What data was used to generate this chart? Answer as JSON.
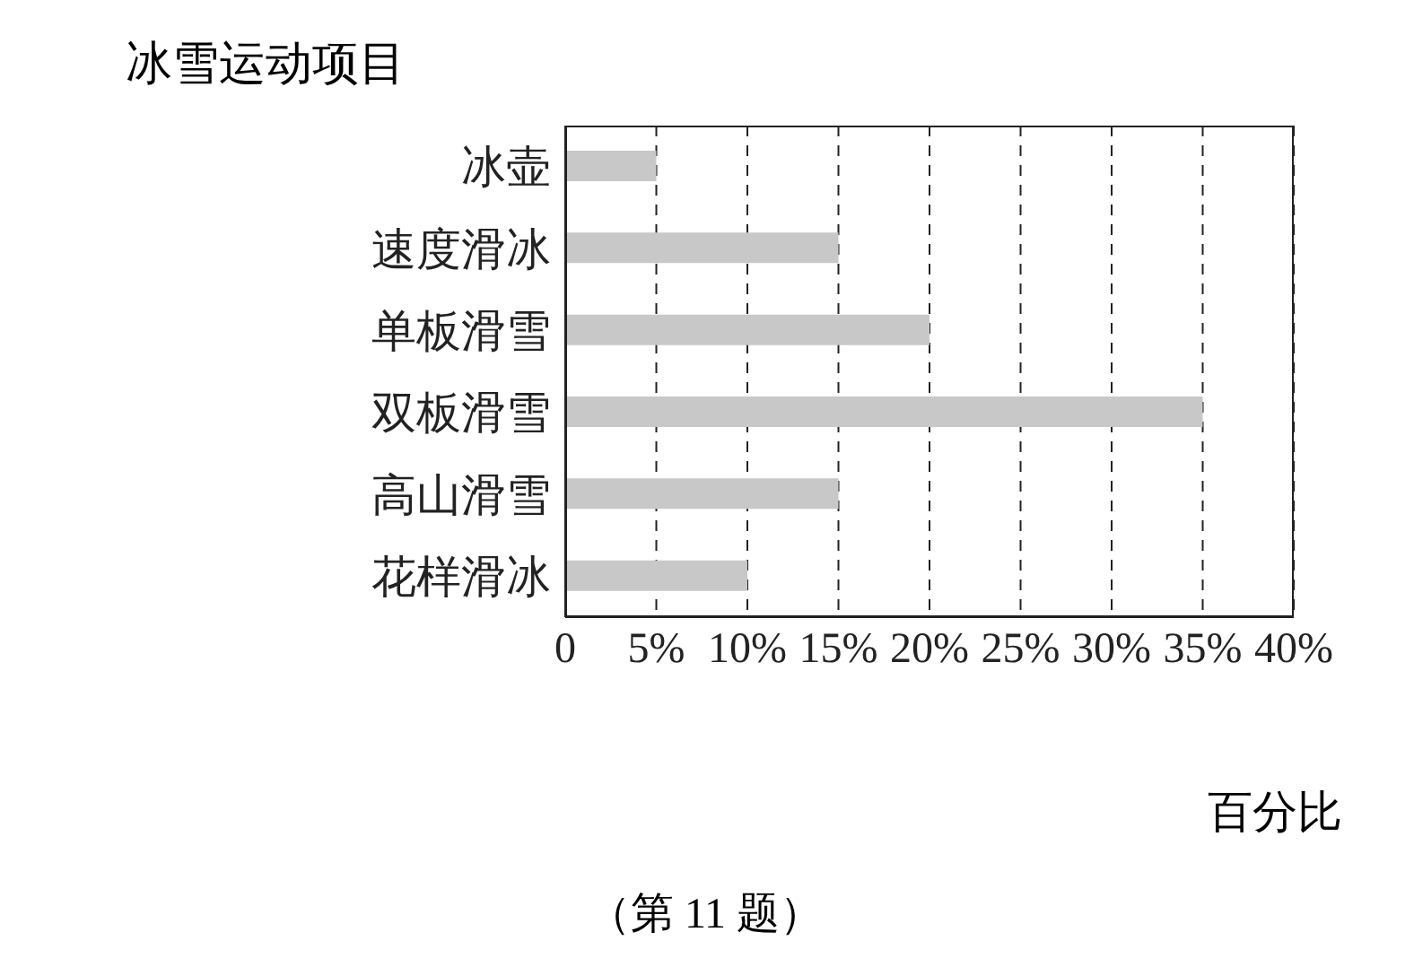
{
  "chart_data": {
    "type": "bar",
    "orientation": "horizontal",
    "ylabel": "冰雪运动项目",
    "xlabel": "百分比",
    "categories": [
      "冰壶",
      "速度滑冰",
      "单板滑雪",
      "双板滑雪",
      "高山滑雪",
      "花样滑冰"
    ],
    "values": [
      5,
      15,
      20,
      35,
      15,
      10
    ],
    "color": "#c8c8c8",
    "xlim": [
      0,
      40
    ],
    "xticks": [
      0,
      {
        "value": 5,
        "label": "5%"
      },
      {
        "value": 10,
        "label": "10%"
      },
      {
        "value": 15,
        "label": "15%"
      },
      {
        "value": 20,
        "label": "20%"
      },
      {
        "value": 25,
        "label": "25%"
      },
      {
        "value": 30,
        "label": "30%"
      },
      {
        "value": 35,
        "label": "35%"
      },
      {
        "value": 40,
        "label": "40%"
      }
    ],
    "grid": "x",
    "line_style": "dashed",
    "annotations": [
      "（第 11 题）"
    ]
  }
}
